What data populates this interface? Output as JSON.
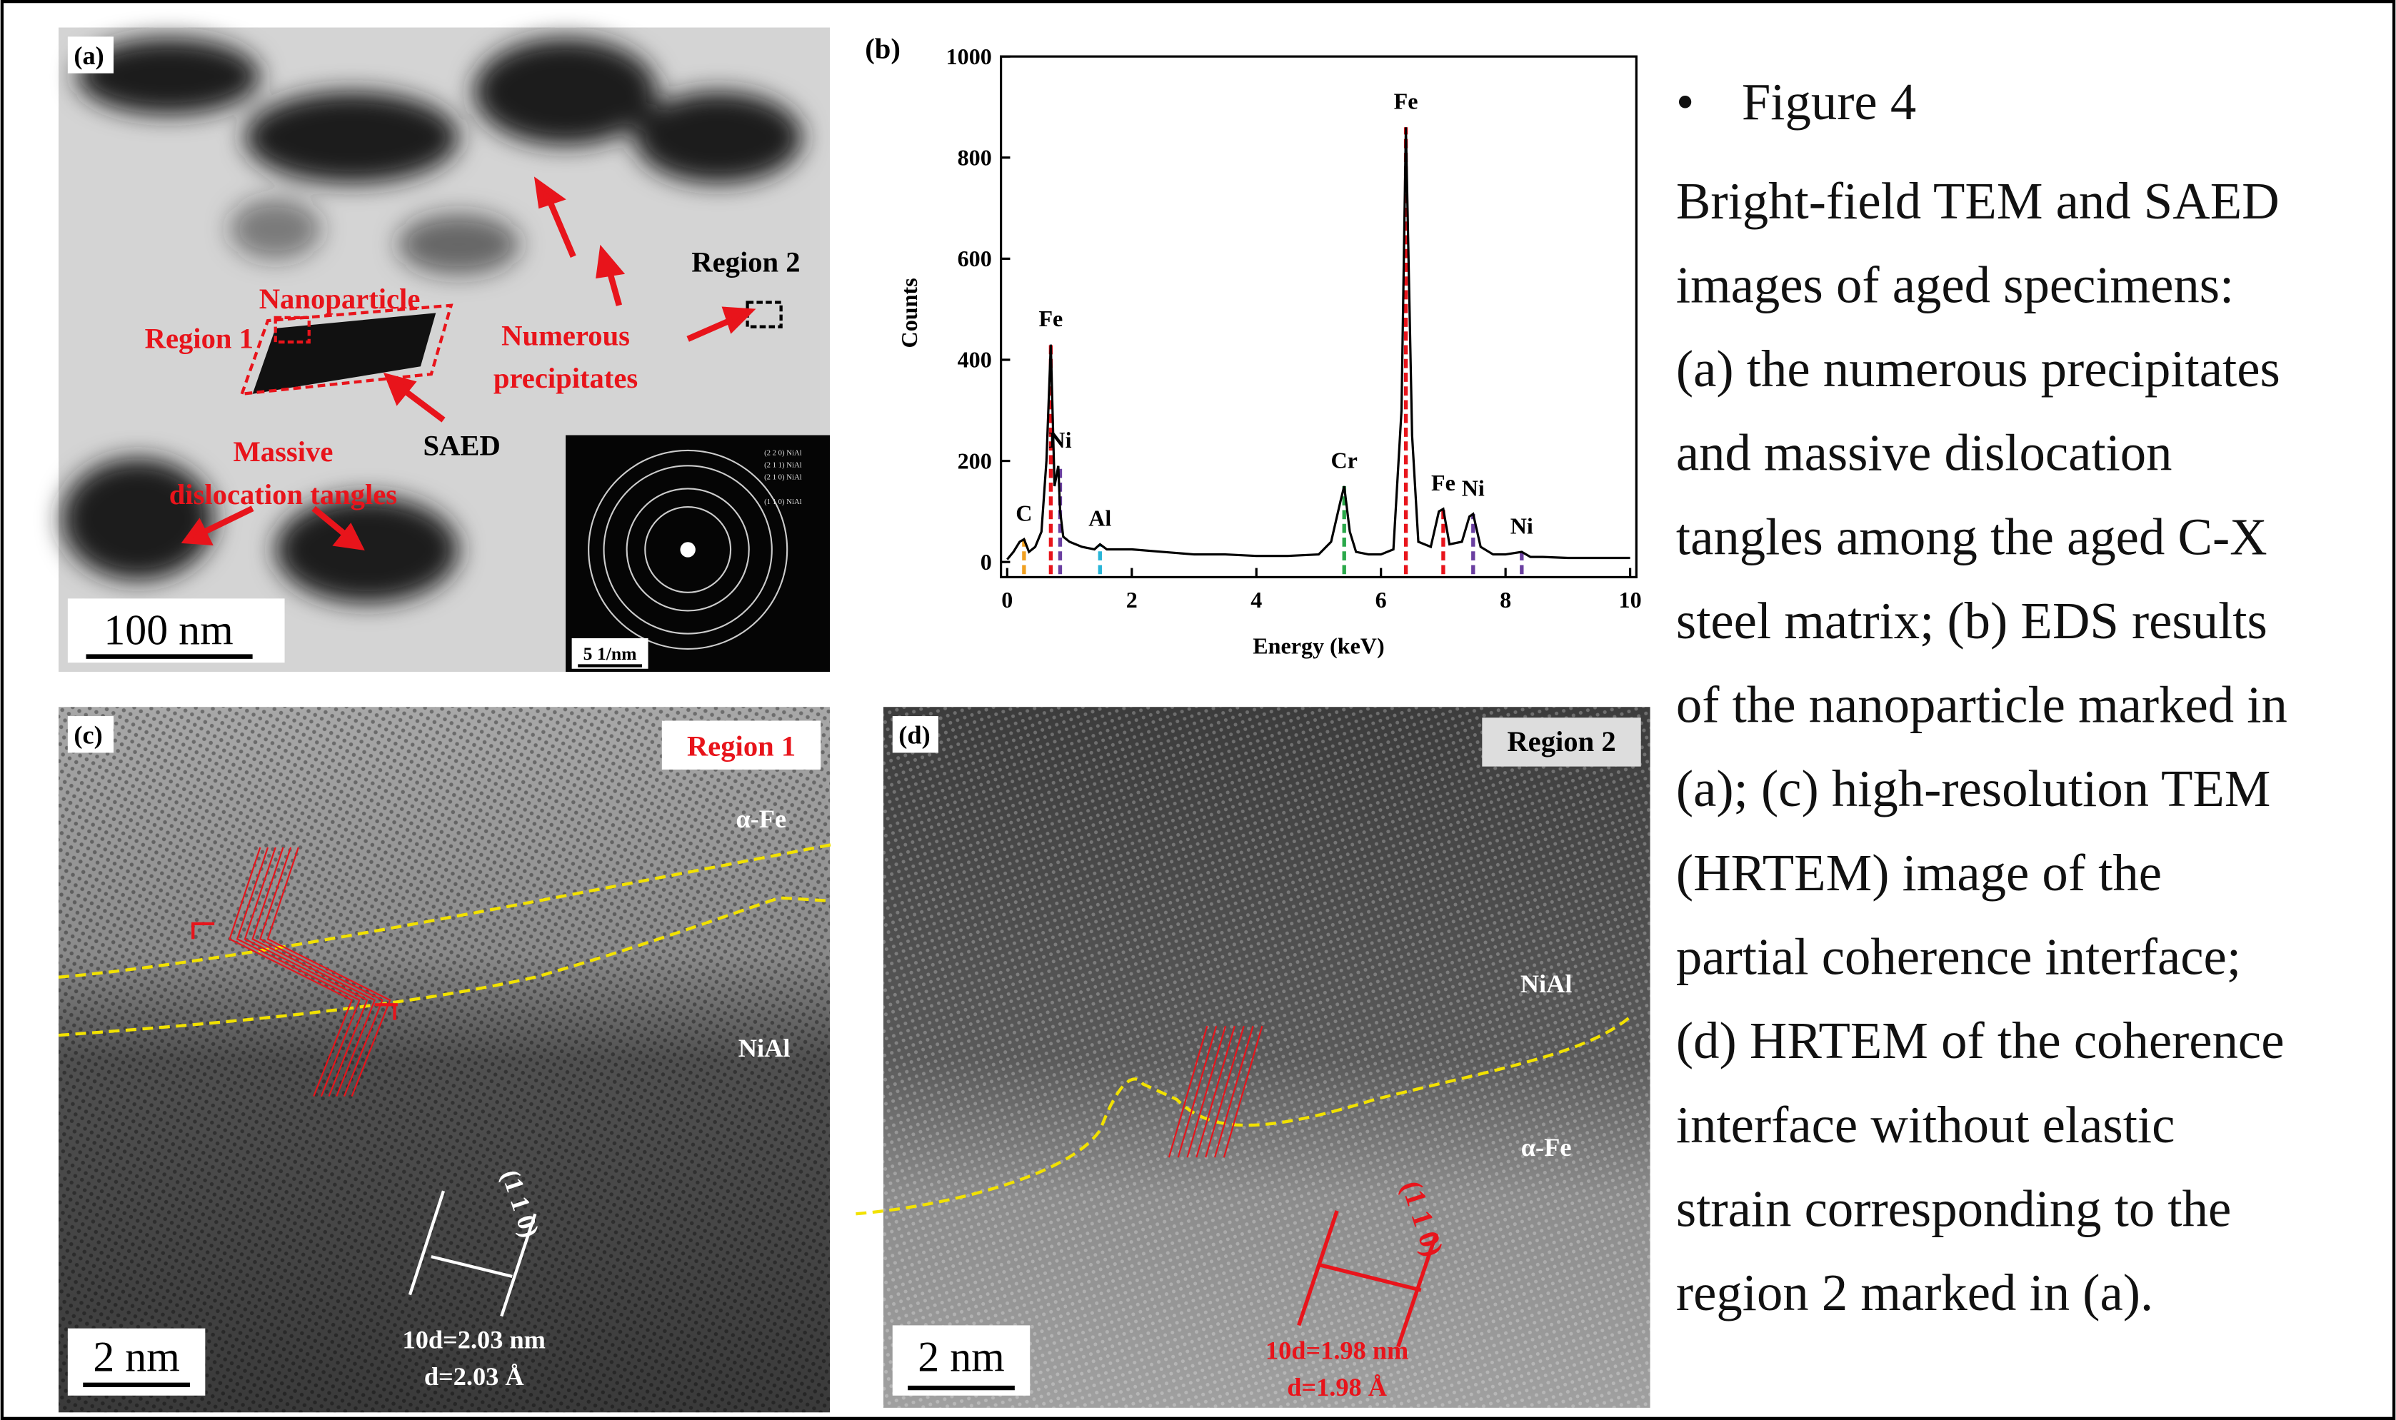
{
  "panel_a": {
    "label": "(a)",
    "annotations": {
      "nanoparticle": "Nanoparticle",
      "region_1": "Region 1",
      "region_2": "Region 2",
      "precipitates": [
        "Numerous",
        "precipitates"
      ],
      "saed": "SAED",
      "tangles": [
        "Massive",
        "dislocation tangles"
      ]
    },
    "inset_rings": [
      "(2 2 0) NiAl",
      "(2 1 1) NiAl",
      "(2 1 0) NiAl",
      "(1 1 0) NiAl"
    ],
    "scale_bar": "100 nm",
    "inset_scale_bar": "5 1/nm"
  },
  "chart_data": {
    "type": "line",
    "label": "(b)",
    "x_label": "Energy (keV)",
    "y_label": "Counts",
    "color": "#000000",
    "x": [
      0,
      0.1,
      0.2,
      0.27,
      0.35,
      0.45,
      0.55,
      0.63,
      0.7,
      0.76,
      0.82,
      0.85,
      0.9,
      1.0,
      1.2,
      1.4,
      1.49,
      1.6,
      2.0,
      2.5,
      3,
      3.5,
      4,
      4.5,
      5,
      5.2,
      5.35,
      5.41,
      5.5,
      5.6,
      5.8,
      6.0,
      6.2,
      6.33,
      6.4,
      6.5,
      6.6,
      6.8,
      6.93,
      7.0,
      7.1,
      7.3,
      7.42,
      7.48,
      7.6,
      7.8,
      8.0,
      8.26,
      8.4,
      8.6,
      9,
      9.5,
      10
    ],
    "values": [
      5,
      20,
      40,
      45,
      20,
      30,
      60,
      200,
      430,
      150,
      190,
      100,
      50,
      40,
      30,
      25,
      35,
      25,
      25,
      20,
      15,
      15,
      12,
      12,
      15,
      40,
      120,
      150,
      60,
      20,
      15,
      15,
      25,
      300,
      860,
      250,
      40,
      30,
      100,
      105,
      35,
      40,
      90,
      95,
      30,
      15,
      15,
      20,
      10,
      10,
      8,
      8,
      8
    ],
    "xlim": [
      -0.1,
      10.1
    ],
    "ylim": [
      -30,
      1000
    ],
    "xticks": [
      0,
      2,
      4,
      6,
      8,
      10
    ],
    "yticks": [
      0,
      200,
      400,
      600,
      800,
      1000
    ],
    "peaks": [
      {
        "label": "C",
        "x": 0.27,
        "value": 45,
        "color": "#f0a020"
      },
      {
        "label": "Fe",
        "x": 0.7,
        "value": 430,
        "color": "#e8141b"
      },
      {
        "label": "Ni",
        "x": 0.85,
        "value": 190,
        "color": "#6a3fa0"
      },
      {
        "label": "Al",
        "x": 1.49,
        "value": 35,
        "color": "#27b5d8"
      },
      {
        "label": "Cr",
        "x": 5.41,
        "value": 150,
        "color": "#2aa84a"
      },
      {
        "label": "Fe",
        "x": 6.4,
        "value": 860,
        "color": "#e8141b"
      },
      {
        "label": "Fe",
        "x": 7.0,
        "value": 105,
        "color": "#e8141b"
      },
      {
        "label": "Ni",
        "x": 7.48,
        "value": 95,
        "color": "#6a3fa0"
      },
      {
        "label": "Ni",
        "x": 8.26,
        "value": 20,
        "color": "#6a3fa0"
      }
    ]
  },
  "panel_c": {
    "label": "(c)",
    "region": "Region 1",
    "phase_top": "α-Fe",
    "phase_bottom": "NiAl",
    "plane": "(1 1 0)",
    "spacing": [
      "10d=2.03 nm",
      "d=2.03 Å"
    ],
    "scale_bar": "2 nm"
  },
  "panel_d": {
    "label": "(d)",
    "region": "Region 2",
    "phase_top": "NiAl",
    "phase_bottom": "α-Fe",
    "plane": "(1 1 0)",
    "spacing": [
      "10d=1.98 nm",
      "d=1.98 Å"
    ],
    "scale_bar": "2 nm"
  },
  "caption": {
    "title": "Figure 4",
    "lines": [
      "Bright-field TEM and SAED",
      "images of aged specimens:",
      "(a) the numerous precipitates",
      "and massive dislocation",
      "tangles among the aged C-X",
      "steel matrix; (b) EDS results",
      "of the nanoparticle marked in",
      "(a); (c) high-resolution TEM",
      "(HRTEM) image of the",
      "partial coherence interface;",
      "(d) HRTEM of the coherence",
      "interface without elastic",
      "strain corresponding to the",
      "region 2 marked in (a)."
    ]
  }
}
